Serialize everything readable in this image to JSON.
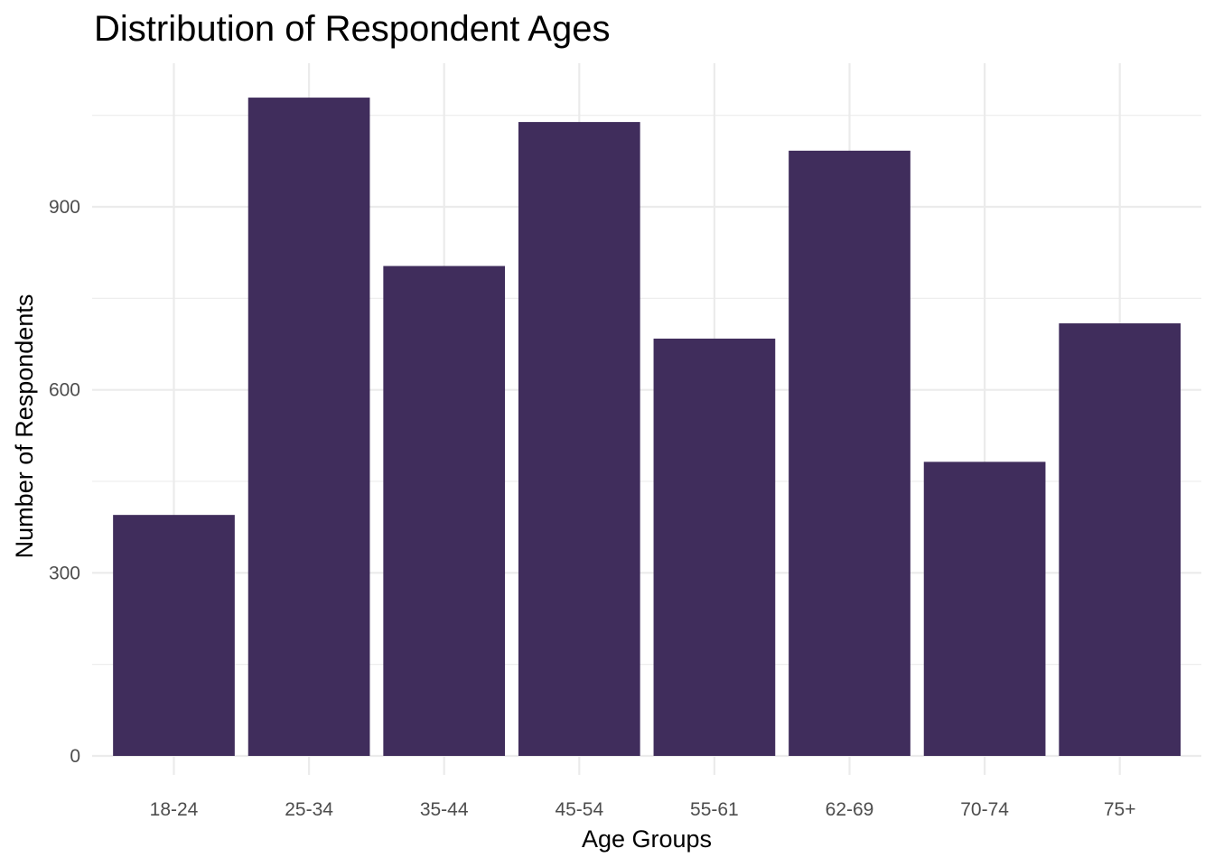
{
  "chart_data": {
    "type": "bar",
    "title": "Distribution of Respondent Ages",
    "xlabel": "Age Groups",
    "ylabel": "Number of Respondents",
    "categories": [
      "18-24",
      "25-34",
      "35-44",
      "45-54",
      "55-61",
      "62-69",
      "70-74",
      "75+"
    ],
    "values": [
      395,
      1079,
      803,
      1039,
      684,
      992,
      482,
      709
    ],
    "ylim": [
      0,
      1133
    ],
    "yticks": [
      0,
      300,
      600,
      900
    ],
    "ytick_labels": [
      "0",
      "300",
      "600",
      "900"
    ],
    "grid": true,
    "legend": "none",
    "bar_color": "#402d5c"
  }
}
